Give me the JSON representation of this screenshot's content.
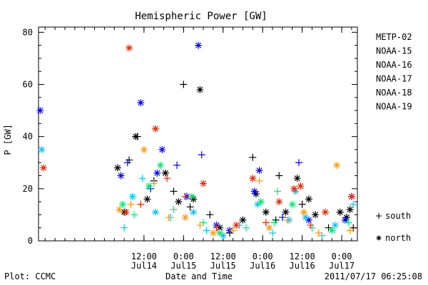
{
  "chart_data": {
    "type": "scatter",
    "title": "Hemispheric Power [GW]",
    "ylabel": "P [GW]",
    "xlabel": "Date and Time",
    "ylim": [
      0,
      82
    ],
    "yticks": [
      0,
      20,
      40,
      60,
      80
    ],
    "xlim": [
      "2011-07-13T04:00",
      "2011-07-17T04:45"
    ],
    "xticks": [
      {
        "time": "2011-07-14T12:00",
        "line1": "12:00",
        "line2": "Jul14"
      },
      {
        "time": "2011-07-15T00:00",
        "line1": "0:00",
        "line2": "Jul15"
      },
      {
        "time": "2011-07-15T12:00",
        "line1": "12:00",
        "line2": "Jul15"
      },
      {
        "time": "2011-07-16T00:00",
        "line1": "0:00",
        "line2": "Jul16"
      },
      {
        "time": "2011-07-16T12:00",
        "line1": "12:00",
        "line2": "Jul16"
      },
      {
        "time": "2011-07-17T00:00",
        "line1": "0:00",
        "line2": "Jul17"
      }
    ],
    "symbols": [
      {
        "marker": "+",
        "label": "south"
      },
      {
        "marker": "*",
        "label": "north"
      }
    ],
    "series": [
      {
        "name": "METP-02",
        "color": "#000000",
        "points": [
          {
            "x": "2011-07-14T04:00",
            "y": 28,
            "m": "north"
          },
          {
            "x": "2011-07-14T06:00",
            "y": 11,
            "m": "north"
          },
          {
            "x": "2011-07-14T07:30",
            "y": 31,
            "m": "south"
          },
          {
            "x": "2011-07-14T09:30",
            "y": 40,
            "m": "north"
          },
          {
            "x": "2011-07-14T10:00",
            "y": 40,
            "m": "south"
          },
          {
            "x": "2011-07-14T13:00",
            "y": 16,
            "m": "north"
          },
          {
            "x": "2011-07-14T15:00",
            "y": 23,
            "m": "south"
          },
          {
            "x": "2011-07-14T18:30",
            "y": 26,
            "m": "north"
          },
          {
            "x": "2011-07-14T21:00",
            "y": 19,
            "m": "south"
          },
          {
            "x": "2011-07-14T22:30",
            "y": 15,
            "m": "north"
          },
          {
            "x": "2011-07-15T00:00",
            "y": 60,
            "m": "south"
          },
          {
            "x": "2011-07-15T02:00",
            "y": 13,
            "m": "south"
          },
          {
            "x": "2011-07-15T03:00",
            "y": 16,
            "m": "north"
          },
          {
            "x": "2011-07-15T05:00",
            "y": 58,
            "m": "north"
          },
          {
            "x": "2011-07-15T08:00",
            "y": 10,
            "m": "south"
          },
          {
            "x": "2011-07-15T11:00",
            "y": 5,
            "m": "north"
          },
          {
            "x": "2011-07-15T14:00",
            "y": 3,
            "m": "south"
          },
          {
            "x": "2011-07-15T18:00",
            "y": 8,
            "m": "north"
          },
          {
            "x": "2011-07-15T21:00",
            "y": 32,
            "m": "south"
          },
          {
            "x": "2011-07-15T22:00",
            "y": 18,
            "m": "north"
          },
          {
            "x": "2011-07-16T01:00",
            "y": 11,
            "m": "north"
          },
          {
            "x": "2011-07-16T04:00",
            "y": 8,
            "m": "south"
          },
          {
            "x": "2011-07-16T05:00",
            "y": 25,
            "m": "south"
          },
          {
            "x": "2011-07-16T07:00",
            "y": 11,
            "m": "north"
          },
          {
            "x": "2011-07-16T10:30",
            "y": 24,
            "m": "north"
          },
          {
            "x": "2011-07-16T12:00",
            "y": 14,
            "m": "south"
          },
          {
            "x": "2011-07-16T14:00",
            "y": 16,
            "m": "north"
          },
          {
            "x": "2011-07-16T16:00",
            "y": 10,
            "m": "north"
          },
          {
            "x": "2011-07-16T20:00",
            "y": 5,
            "m": "south"
          },
          {
            "x": "2011-07-16T23:30",
            "y": 11,
            "m": "north"
          },
          {
            "x": "2011-07-17T01:30",
            "y": 9,
            "m": "north"
          },
          {
            "x": "2011-07-17T02:30",
            "y": 12,
            "m": "north"
          },
          {
            "x": "2011-07-17T03:30",
            "y": 5,
            "m": "south"
          }
        ]
      },
      {
        "name": "NOAA-15",
        "color": "#0000ff",
        "points": [
          {
            "x": "2011-07-13T04:30",
            "y": 50,
            "m": "north"
          },
          {
            "x": "2011-07-14T05:00",
            "y": 25,
            "m": "north"
          },
          {
            "x": "2011-07-14T07:00",
            "y": 30,
            "m": "south"
          },
          {
            "x": "2011-07-14T11:00",
            "y": 53,
            "m": "north"
          },
          {
            "x": "2011-07-14T14:00",
            "y": 20,
            "m": "south"
          },
          {
            "x": "2011-07-14T16:00",
            "y": 26,
            "m": "north"
          },
          {
            "x": "2011-07-14T17:30",
            "y": 35,
            "m": "north"
          },
          {
            "x": "2011-07-14T22:00",
            "y": 29,
            "m": "south"
          },
          {
            "x": "2011-07-15T01:00",
            "y": 17,
            "m": "north"
          },
          {
            "x": "2011-07-15T04:30",
            "y": 75,
            "m": "north"
          },
          {
            "x": "2011-07-15T05:30",
            "y": 33,
            "m": "south"
          },
          {
            "x": "2011-07-15T10:00",
            "y": 6,
            "m": "north"
          },
          {
            "x": "2011-07-15T14:00",
            "y": 4,
            "m": "north"
          },
          {
            "x": "2011-07-15T21:30",
            "y": 19,
            "m": "north"
          },
          {
            "x": "2011-07-15T23:00",
            "y": 27,
            "m": "north"
          },
          {
            "x": "2011-07-16T06:00",
            "y": 9,
            "m": "south"
          },
          {
            "x": "2011-07-16T11:00",
            "y": 30,
            "m": "south"
          },
          {
            "x": "2011-07-16T14:00",
            "y": 8,
            "m": "north"
          },
          {
            "x": "2011-07-17T01:00",
            "y": 8,
            "m": "north"
          },
          {
            "x": "2011-07-17T03:00",
            "y": 17,
            "m": "north"
          }
        ]
      },
      {
        "name": "NOAA-16",
        "color": "#00c8ff",
        "points": [
          {
            "x": "2011-07-13T05:00",
            "y": 35,
            "m": "north"
          },
          {
            "x": "2011-07-14T06:00",
            "y": 5,
            "m": "south"
          },
          {
            "x": "2011-07-14T08:30",
            "y": 17,
            "m": "north"
          },
          {
            "x": "2011-07-14T11:30",
            "y": 24,
            "m": "south"
          },
          {
            "x": "2011-07-14T15:30",
            "y": 11,
            "m": "north"
          },
          {
            "x": "2011-07-14T20:00",
            "y": 9,
            "m": "south"
          },
          {
            "x": "2011-07-15T03:00",
            "y": 11,
            "m": "north"
          },
          {
            "x": "2011-07-15T07:00",
            "y": 4,
            "m": "south"
          },
          {
            "x": "2011-07-15T12:00",
            "y": 2,
            "m": "north"
          },
          {
            "x": "2011-07-15T17:00",
            "y": 6,
            "m": "south"
          },
          {
            "x": "2011-07-15T22:30",
            "y": 14,
            "m": "north"
          },
          {
            "x": "2011-07-16T03:00",
            "y": 3,
            "m": "south"
          },
          {
            "x": "2011-07-16T08:00",
            "y": 8,
            "m": "north"
          },
          {
            "x": "2011-07-16T10:00",
            "y": 19,
            "m": "north"
          },
          {
            "x": "2011-07-16T13:00",
            "y": 9,
            "m": "north"
          },
          {
            "x": "2011-07-16T18:00",
            "y": 2,
            "m": "south"
          },
          {
            "x": "2011-07-16T22:00",
            "y": 6,
            "m": "north"
          },
          {
            "x": "2011-07-17T03:30",
            "y": 14,
            "m": "south"
          }
        ]
      },
      {
        "name": "NOAA-17",
        "color": "#00e86e",
        "points": [
          {
            "x": "2011-07-14T05:30",
            "y": 14,
            "m": "north"
          },
          {
            "x": "2011-07-14T09:00",
            "y": 10,
            "m": "south"
          },
          {
            "x": "2011-07-14T13:30",
            "y": 21,
            "m": "north"
          },
          {
            "x": "2011-07-14T17:00",
            "y": 29,
            "m": "north"
          },
          {
            "x": "2011-07-14T21:00",
            "y": 12,
            "m": "south"
          },
          {
            "x": "2011-07-15T02:30",
            "y": 17,
            "m": "north"
          },
          {
            "x": "2011-07-15T06:00",
            "y": 7,
            "m": "south"
          },
          {
            "x": "2011-07-15T11:00",
            "y": 3,
            "m": "north"
          },
          {
            "x": "2011-07-15T19:00",
            "y": 5,
            "m": "south"
          },
          {
            "x": "2011-07-15T23:30",
            "y": 15,
            "m": "north"
          },
          {
            "x": "2011-07-16T03:30",
            "y": 7,
            "m": "south"
          },
          {
            "x": "2011-07-16T04:30",
            "y": 19,
            "m": "south"
          },
          {
            "x": "2011-07-16T09:00",
            "y": 14,
            "m": "north"
          },
          {
            "x": "2011-07-16T15:00",
            "y": 5,
            "m": "south"
          },
          {
            "x": "2011-07-16T21:00",
            "y": 4,
            "m": "north"
          },
          {
            "x": "2011-07-17T02:00",
            "y": 7,
            "m": "south"
          }
        ]
      },
      {
        "name": "NOAA-18",
        "color": "#ff9900",
        "points": [
          {
            "x": "2011-07-14T04:30",
            "y": 12,
            "m": "north"
          },
          {
            "x": "2011-07-14T08:00",
            "y": 14,
            "m": "south"
          },
          {
            "x": "2011-07-14T12:00",
            "y": 35,
            "m": "north"
          },
          {
            "x": "2011-07-14T15:00",
            "y": 22,
            "m": "south"
          },
          {
            "x": "2011-07-14T19:30",
            "y": 9,
            "m": "south"
          },
          {
            "x": "2011-07-15T00:30",
            "y": 9,
            "m": "north"
          },
          {
            "x": "2011-07-15T05:00",
            "y": 6,
            "m": "south"
          },
          {
            "x": "2011-07-15T09:00",
            "y": 3,
            "m": "north"
          },
          {
            "x": "2011-07-15T15:00",
            "y": 4,
            "m": "south"
          },
          {
            "x": "2011-07-15T23:00",
            "y": 23,
            "m": "south"
          },
          {
            "x": "2011-07-16T02:00",
            "y": 5,
            "m": "north"
          },
          {
            "x": "2011-07-16T07:30",
            "y": 8,
            "m": "south"
          },
          {
            "x": "2011-07-16T12:30",
            "y": 11,
            "m": "north"
          },
          {
            "x": "2011-07-16T17:00",
            "y": 3,
            "m": "south"
          },
          {
            "x": "2011-07-16T22:30",
            "y": 29,
            "m": "north"
          },
          {
            "x": "2011-07-17T02:30",
            "y": 4,
            "m": "south"
          }
        ]
      },
      {
        "name": "NOAA-19",
        "color": "#ee2200",
        "points": [
          {
            "x": "2011-07-13T05:30",
            "y": 28,
            "m": "north"
          },
          {
            "x": "2011-07-14T06:30",
            "y": 11,
            "m": "north"
          },
          {
            "x": "2011-07-14T07:30",
            "y": 74,
            "m": "north"
          },
          {
            "x": "2011-07-14T11:00",
            "y": 14,
            "m": "south"
          },
          {
            "x": "2011-07-14T15:30",
            "y": 43,
            "m": "north"
          },
          {
            "x": "2011-07-14T19:00",
            "y": 24,
            "m": "south"
          },
          {
            "x": "2011-07-15T00:30",
            "y": 17,
            "m": "south"
          },
          {
            "x": "2011-07-15T06:00",
            "y": 22,
            "m": "north"
          },
          {
            "x": "2011-07-15T10:00",
            "y": 5,
            "m": "south"
          },
          {
            "x": "2011-07-15T16:00",
            "y": 6,
            "m": "north"
          },
          {
            "x": "2011-07-15T21:00",
            "y": 24,
            "m": "north"
          },
          {
            "x": "2011-07-16T01:00",
            "y": 7,
            "m": "south"
          },
          {
            "x": "2011-07-16T05:00",
            "y": 15,
            "m": "north"
          },
          {
            "x": "2011-07-16T09:30",
            "y": 20,
            "m": "north"
          },
          {
            "x": "2011-07-16T11:30",
            "y": 21,
            "m": "north"
          },
          {
            "x": "2011-07-16T14:30",
            "y": 6,
            "m": "south"
          },
          {
            "x": "2011-07-16T19:00",
            "y": 11,
            "m": "north"
          },
          {
            "x": "2011-07-17T03:00",
            "y": 17,
            "m": "north"
          }
        ]
      }
    ]
  },
  "footer": {
    "plot_credit": "Plot: CCMC",
    "timestamp": "2011/07/17 06:25:08"
  }
}
